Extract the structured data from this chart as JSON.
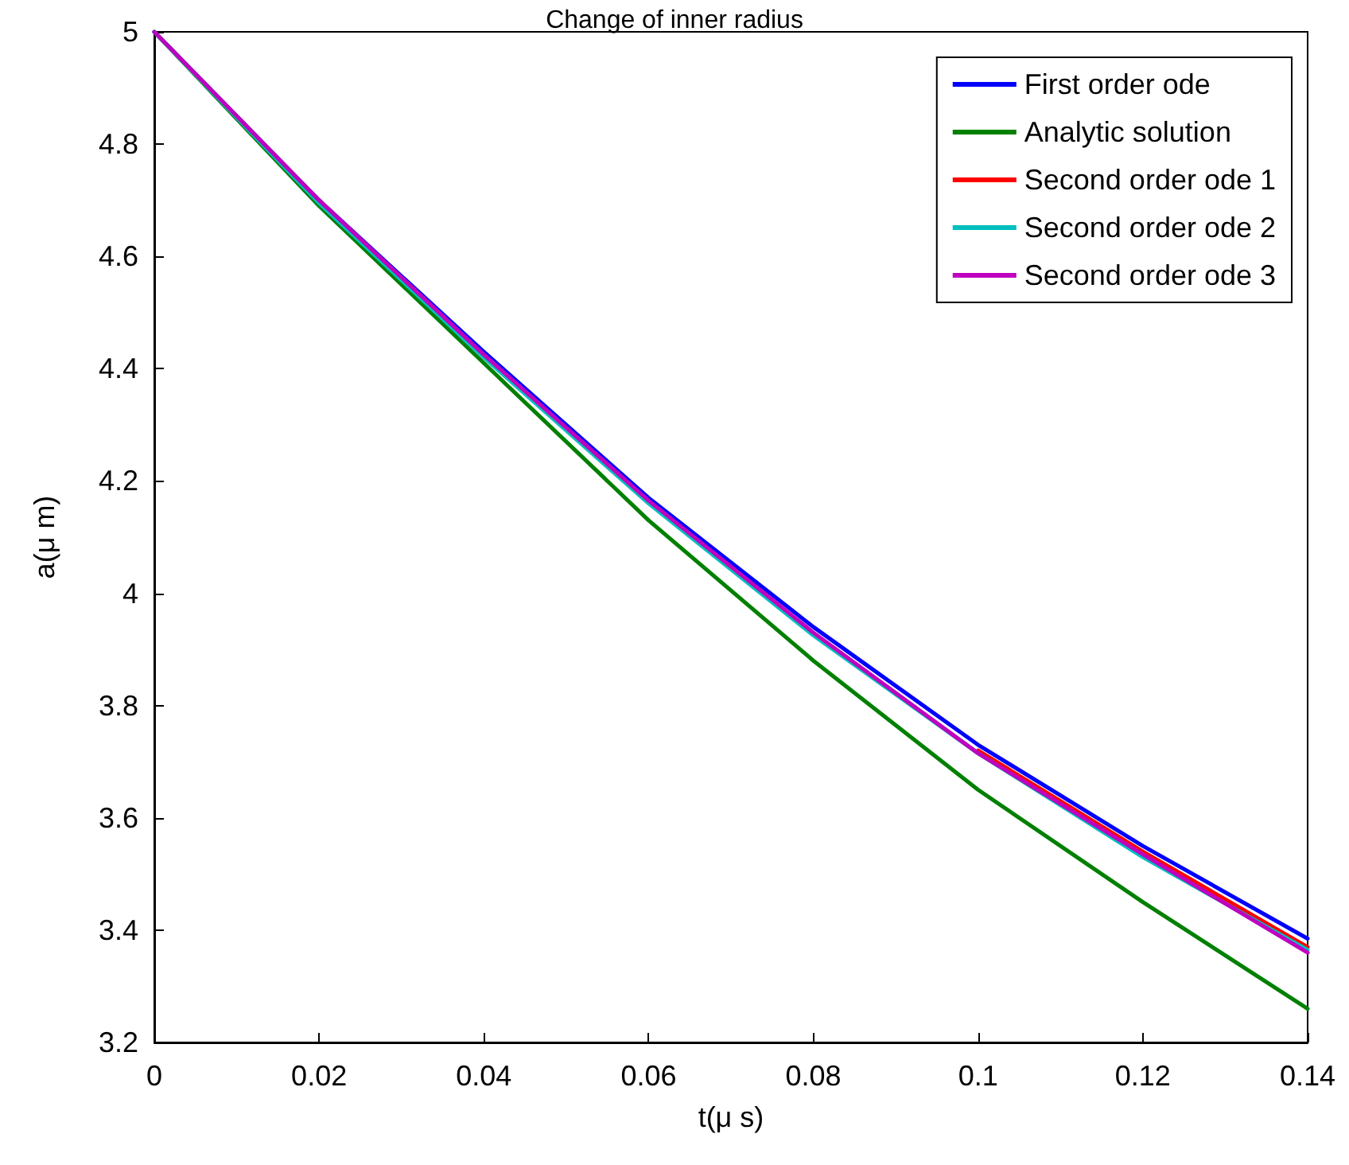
{
  "chart_data": {
    "type": "line",
    "title": "Change of inner radius",
    "xlabel": "t(μ s)",
    "ylabel": "a(μ m)",
    "x": [
      0,
      0.02,
      0.04,
      0.06,
      0.08,
      0.1,
      0.12,
      0.14
    ],
    "series": [
      {
        "name": "First order ode",
        "color": "#0000ff",
        "values": [
          5,
          4.7,
          4.43,
          4.17,
          3.94,
          3.73,
          3.55,
          3.385
        ]
      },
      {
        "name": "Analytic solution",
        "color": "#008000",
        "values": [
          5,
          4.69,
          4.41,
          4.13,
          3.88,
          3.65,
          3.45,
          3.26
        ]
      },
      {
        "name": "Second order ode 1",
        "color": "#ff0000",
        "values": [
          null,
          null,
          null,
          null,
          null,
          3.72,
          3.54,
          3.37
        ]
      },
      {
        "name": "Second order ode 2",
        "color": "#00bfbf",
        "values": [
          5,
          4.695,
          4.42,
          4.16,
          3.925,
          3.715,
          3.53,
          3.365
        ]
      },
      {
        "name": "Second order ode 3",
        "color": "#bf00bf",
        "values": [
          5,
          4.7,
          4.425,
          4.165,
          3.93,
          3.715,
          3.535,
          3.36
        ]
      }
    ],
    "xlim": [
      0,
      0.14
    ],
    "xticks": [
      0,
      0.02,
      0.04,
      0.06,
      0.08,
      0.1,
      0.12,
      0.14
    ],
    "ylim": [
      3.2,
      5
    ],
    "yticks": [
      3.2,
      3.4,
      3.6,
      3.8,
      4,
      4.2,
      4.4,
      4.6,
      4.8,
      5
    ],
    "grid": false,
    "legend": "top right",
    "marker": "none",
    "line_style": "solid"
  }
}
